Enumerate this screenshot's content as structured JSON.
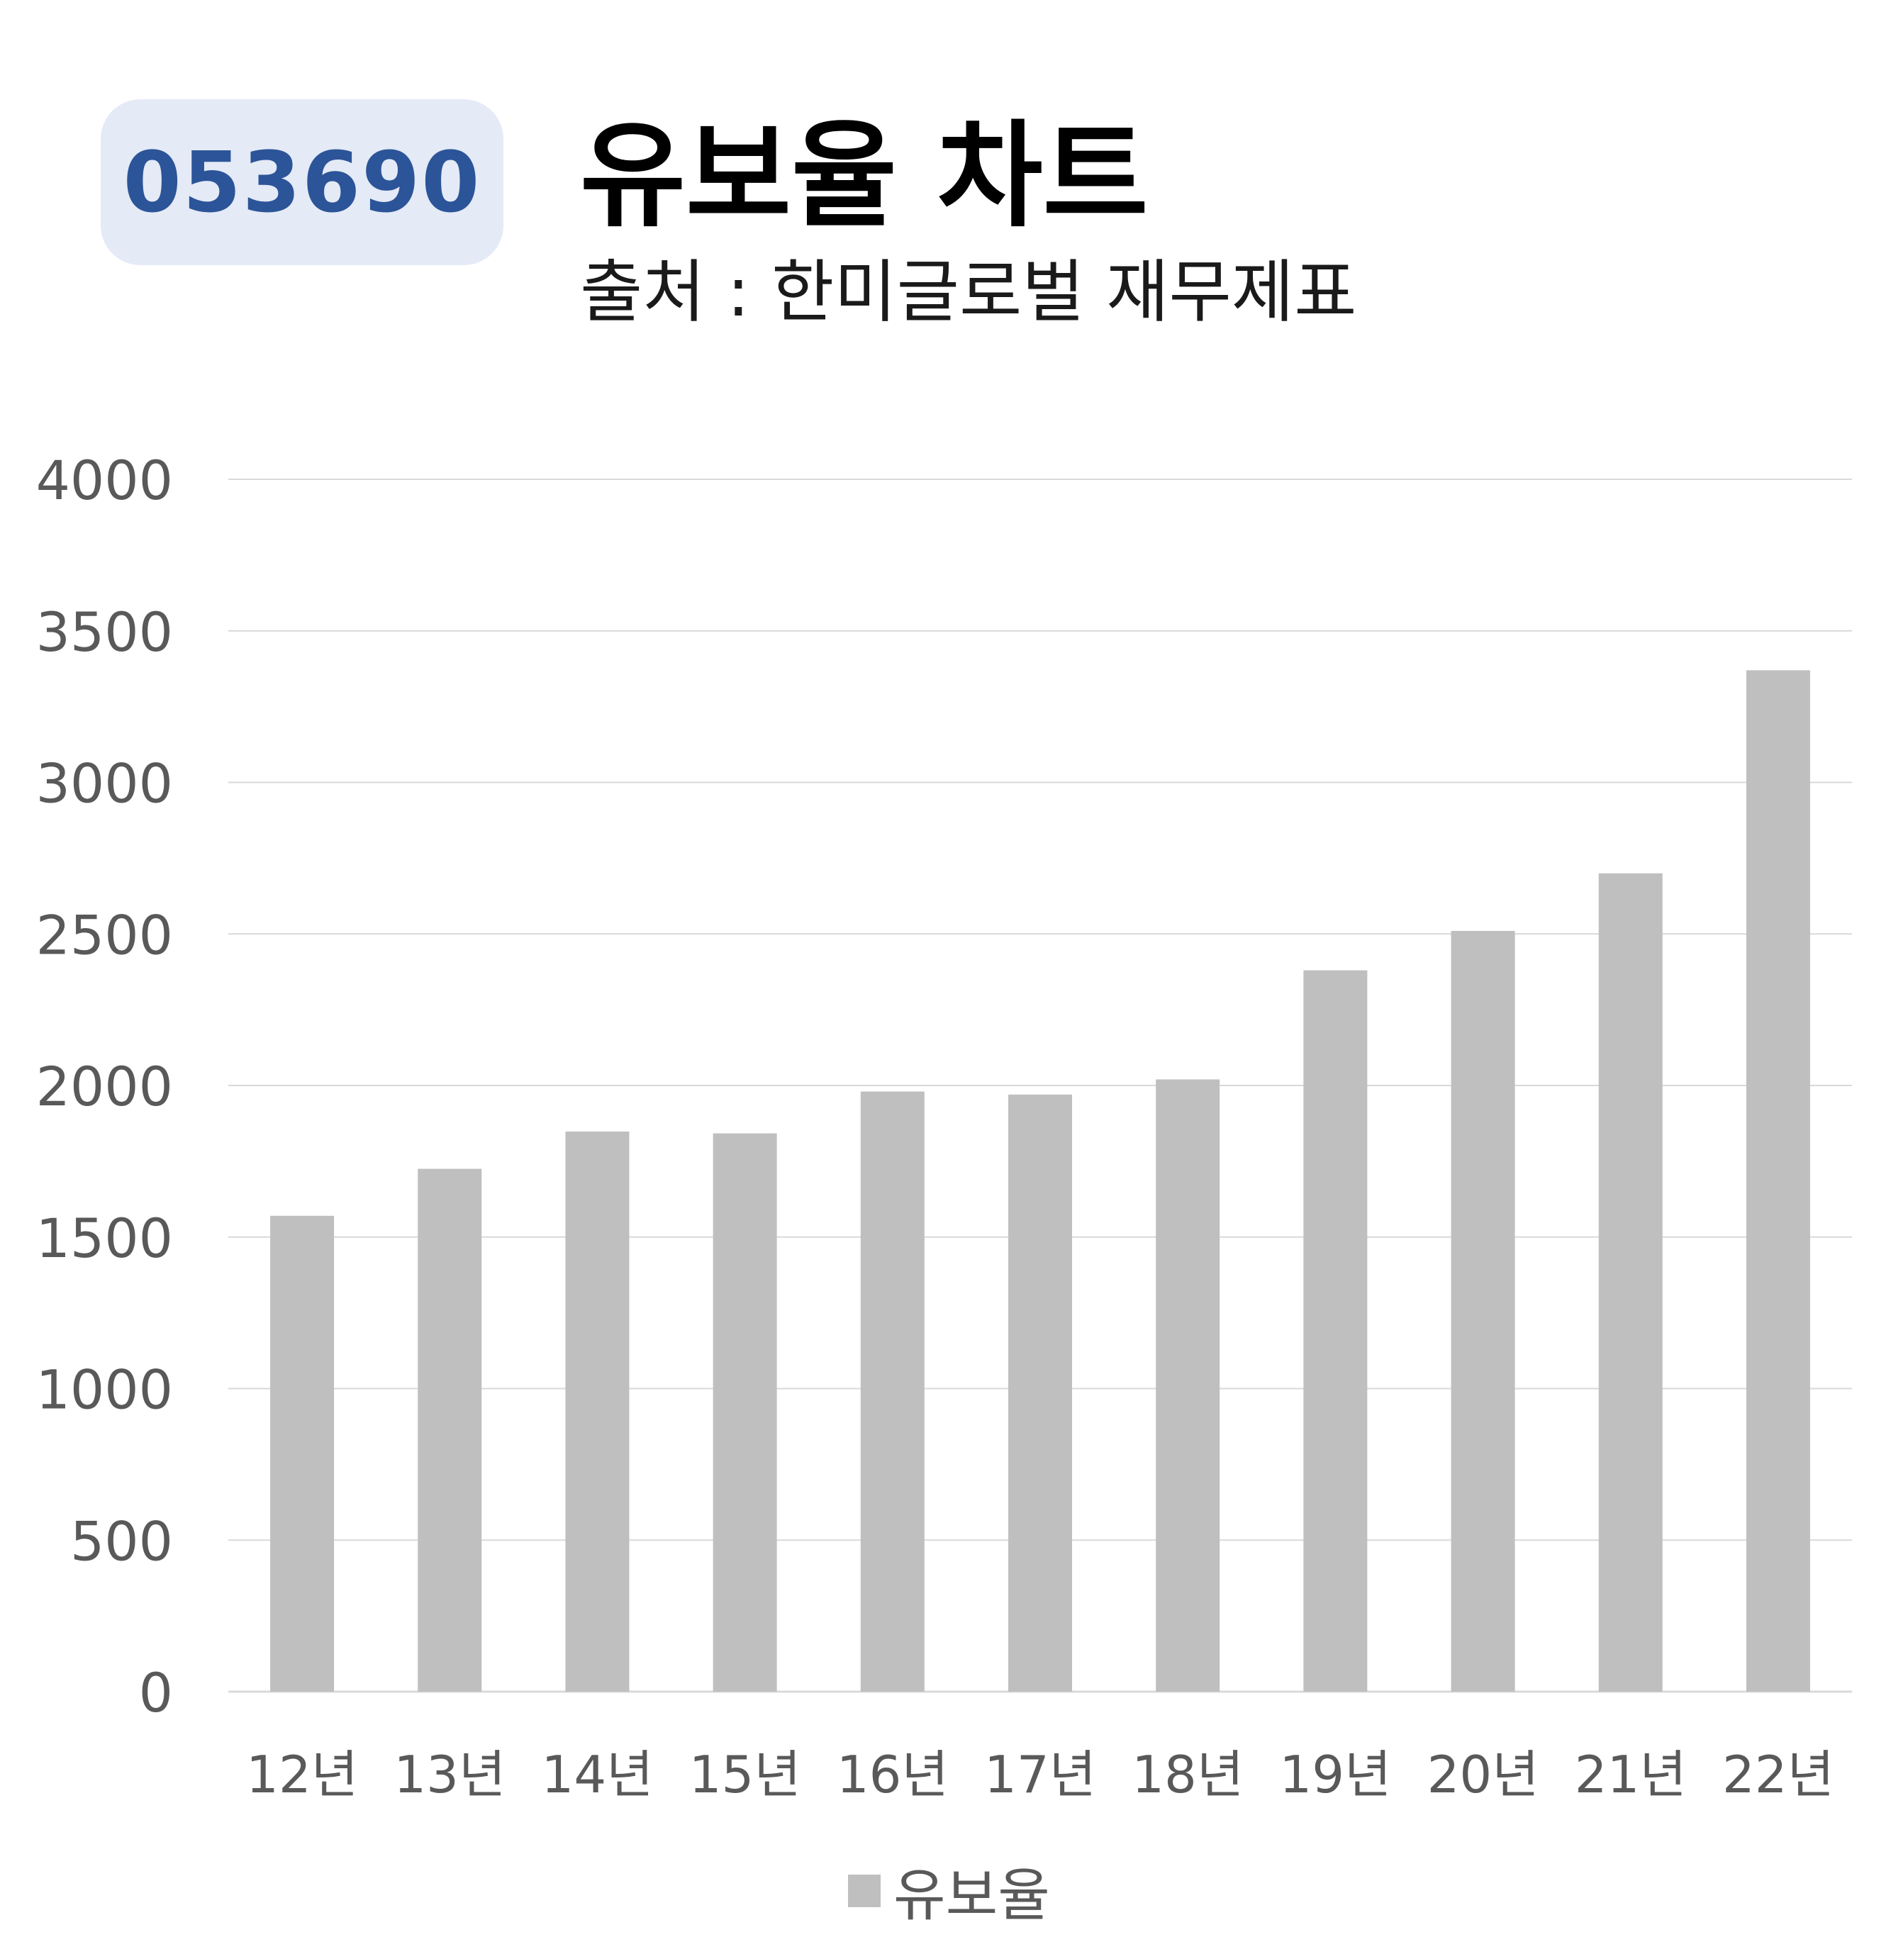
{
  "header": {
    "ticker": "053690",
    "title": "유보율 차트",
    "subtitle": "출처 : 한미글로벌 재무제표"
  },
  "colors": {
    "bar": "#bfbfbf",
    "badge_bg": "#e4eaf6",
    "badge_text": "#2c5498",
    "gridline": "#d9d9d9",
    "axis_text": "#595959"
  },
  "chart_data": {
    "type": "bar",
    "categories": [
      "12년",
      "13년",
      "14년",
      "15년",
      "16년",
      "17년",
      "18년",
      "19년",
      "20년",
      "21년",
      "22년"
    ],
    "series": [
      {
        "name": "유보율",
        "values": [
          1570,
          1725,
          1848,
          1842,
          1980,
          1970,
          2020,
          2380,
          2510,
          2700,
          3370
        ]
      }
    ],
    "ylim": [
      0,
      4000
    ],
    "yticks": [
      0,
      500,
      1000,
      1500,
      2000,
      2500,
      3000,
      3500,
      4000
    ],
    "grid": true,
    "legend_position": "bottom"
  }
}
